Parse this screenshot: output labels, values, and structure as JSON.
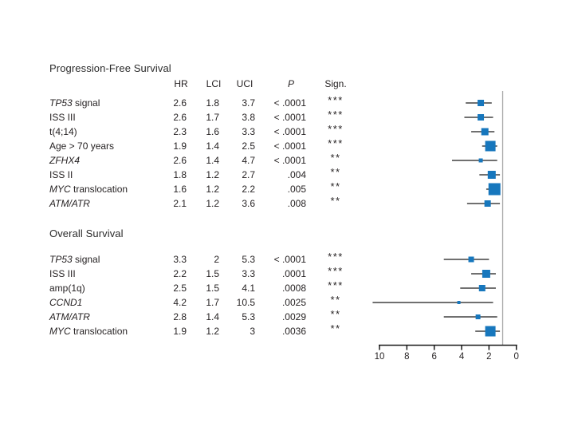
{
  "figure": {
    "background": "#ffffff",
    "text_color": "#231f20"
  },
  "chart_data": {
    "type": "forest",
    "columns": [
      "HR",
      "LCI",
      "UCI",
      "P",
      "Sign."
    ],
    "axis": {
      "ticks": [
        10,
        8,
        6,
        4,
        2,
        0
      ],
      "range": [
        10,
        0
      ],
      "reversed": true,
      "reference_value": 1
    },
    "colors": {
      "marker": "#1777bd",
      "ci_line": "#1a1a1a",
      "axis_line": "#1a1a1a",
      "reference_line": "#a6a6a6"
    },
    "sections": [
      {
        "title": "Progression-Free Survival",
        "rows": [
          {
            "parts": [
              {
                "t": "TP53",
                "i": true
              },
              {
                "t": " signal",
                "i": false
              }
            ],
            "hr": 2.6,
            "lci": 1.8,
            "uci": 3.7,
            "p": "< .0001",
            "sign": "***",
            "marker": 8
          },
          {
            "parts": [
              {
                "t": "ISS III",
                "i": false
              }
            ],
            "hr": 2.6,
            "lci": 1.7,
            "uci": 3.8,
            "p": "< .0001",
            "sign": "***",
            "marker": 8
          },
          {
            "parts": [
              {
                "t": "t(4;14)",
                "i": false
              }
            ],
            "hr": 2.3,
            "lci": 1.6,
            "uci": 3.3,
            "p": "< .0001",
            "sign": "***",
            "marker": 9
          },
          {
            "parts": [
              {
                "t": "Age > 70 years",
                "i": false
              }
            ],
            "hr": 1.9,
            "lci": 1.4,
            "uci": 2.5,
            "p": "< .0001",
            "sign": "***",
            "marker": 13
          },
          {
            "parts": [
              {
                "t": "ZFHX4",
                "i": true
              }
            ],
            "hr": 2.6,
            "lci": 1.4,
            "uci": 4.7,
            "p": "< .0001",
            "sign": "**",
            "marker": 5
          },
          {
            "parts": [
              {
                "t": "ISS II",
                "i": false
              }
            ],
            "hr": 1.8,
            "lci": 1.2,
            "uci": 2.7,
            "p": ".004",
            "sign": "**",
            "marker": 10
          },
          {
            "parts": [
              {
                "t": "MYC",
                "i": true
              },
              {
                "t": " translocation",
                "i": false
              }
            ],
            "hr": 1.6,
            "lci": 1.2,
            "uci": 2.2,
            "p": ".005",
            "sign": "**",
            "marker": 15
          },
          {
            "parts": [
              {
                "t": "ATM/ATR",
                "i": true
              }
            ],
            "hr": 2.1,
            "lci": 1.2,
            "uci": 3.6,
            "p": ".008",
            "sign": "**",
            "marker": 8
          }
        ]
      },
      {
        "title": "Overall Survival",
        "rows": [
          {
            "parts": [
              {
                "t": "TP53",
                "i": true
              },
              {
                "t": " signal",
                "i": false
              }
            ],
            "hr": 3.3,
            "lci": 2,
            "uci": 5.3,
            "p": "< .0001",
            "sign": "***",
            "marker": 7
          },
          {
            "parts": [
              {
                "t": "ISS III",
                "i": false
              }
            ],
            "hr": 2.2,
            "lci": 1.5,
            "uci": 3.3,
            "p": ".0001",
            "sign": "***",
            "marker": 10
          },
          {
            "parts": [
              {
                "t": "amp(1q)",
                "i": false
              }
            ],
            "hr": 2.5,
            "lci": 1.5,
            "uci": 4.1,
            "p": ".0008",
            "sign": "***",
            "marker": 8
          },
          {
            "parts": [
              {
                "t": "CCND1",
                "i": true
              }
            ],
            "hr": 4.2,
            "lci": 1.7,
            "uci": 10.5,
            "p": ".0025",
            "sign": "**",
            "marker": 4
          },
          {
            "parts": [
              {
                "t": "ATM/ATR",
                "i": true
              }
            ],
            "hr": 2.8,
            "lci": 1.4,
            "uci": 5.3,
            "p": ".0029",
            "sign": "**",
            "marker": 6
          },
          {
            "parts": [
              {
                "t": "MYC",
                "i": true
              },
              {
                "t": " translocation",
                "i": false
              }
            ],
            "hr": 1.9,
            "lci": 1.2,
            "uci": 3,
            "p": ".0036",
            "sign": "**",
            "marker": 13
          }
        ]
      }
    ]
  }
}
